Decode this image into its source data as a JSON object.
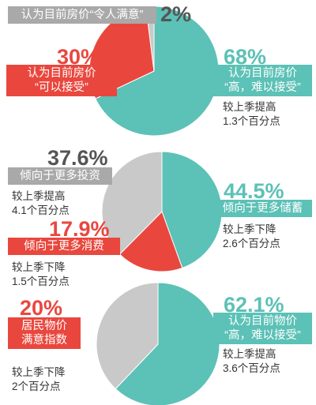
{
  "chart_data": [
    {
      "type": "pie",
      "categories": [
        "认为目前房价\n“高，难以接受”",
        "认为目前房价\n“可以接受”",
        "认为目前房价“令人满意”"
      ],
      "values": [
        68,
        30,
        2
      ],
      "value_labels": [
        "68%",
        "30%",
        "2%"
      ],
      "colors": [
        "#5cc1b6",
        "#e9473e",
        "#c9c9c9"
      ],
      "changes": [
        "较上季提高\n1.3个百分点",
        null,
        null
      ]
    },
    {
      "type": "pie",
      "categories": [
        "倾向于更多储蓄",
        "倾向于更多消费",
        "倾向于更多投资"
      ],
      "values": [
        44.5,
        17.9,
        37.6
      ],
      "value_labels": [
        "44.5%",
        "17.9%",
        "37.6%"
      ],
      "colors": [
        "#5cc1b6",
        "#e9473e",
        "#c9c9c9"
      ],
      "changes": [
        "较上季下降\n2.6个百分点",
        "较上季下降\n1.5个百分点",
        "较上季提高\n4.1个百分点"
      ]
    },
    {
      "type": "pie",
      "categories": [
        "认为目前物价\n“高，难以接受”",
        null
      ],
      "values": [
        62.1,
        37.9
      ],
      "value_labels": [
        "62.1%",
        null
      ],
      "colors": [
        "#5cc1b6",
        "#c9c9c9"
      ],
      "changes": [
        "较上季提高\n3.6个百分点",
        null
      ],
      "highlight": {
        "value": 20,
        "value_label": "20%",
        "label": "居民物价\n满意指数",
        "change": "较上季下降\n2个百分点",
        "color": "#e9473e"
      }
    }
  ]
}
